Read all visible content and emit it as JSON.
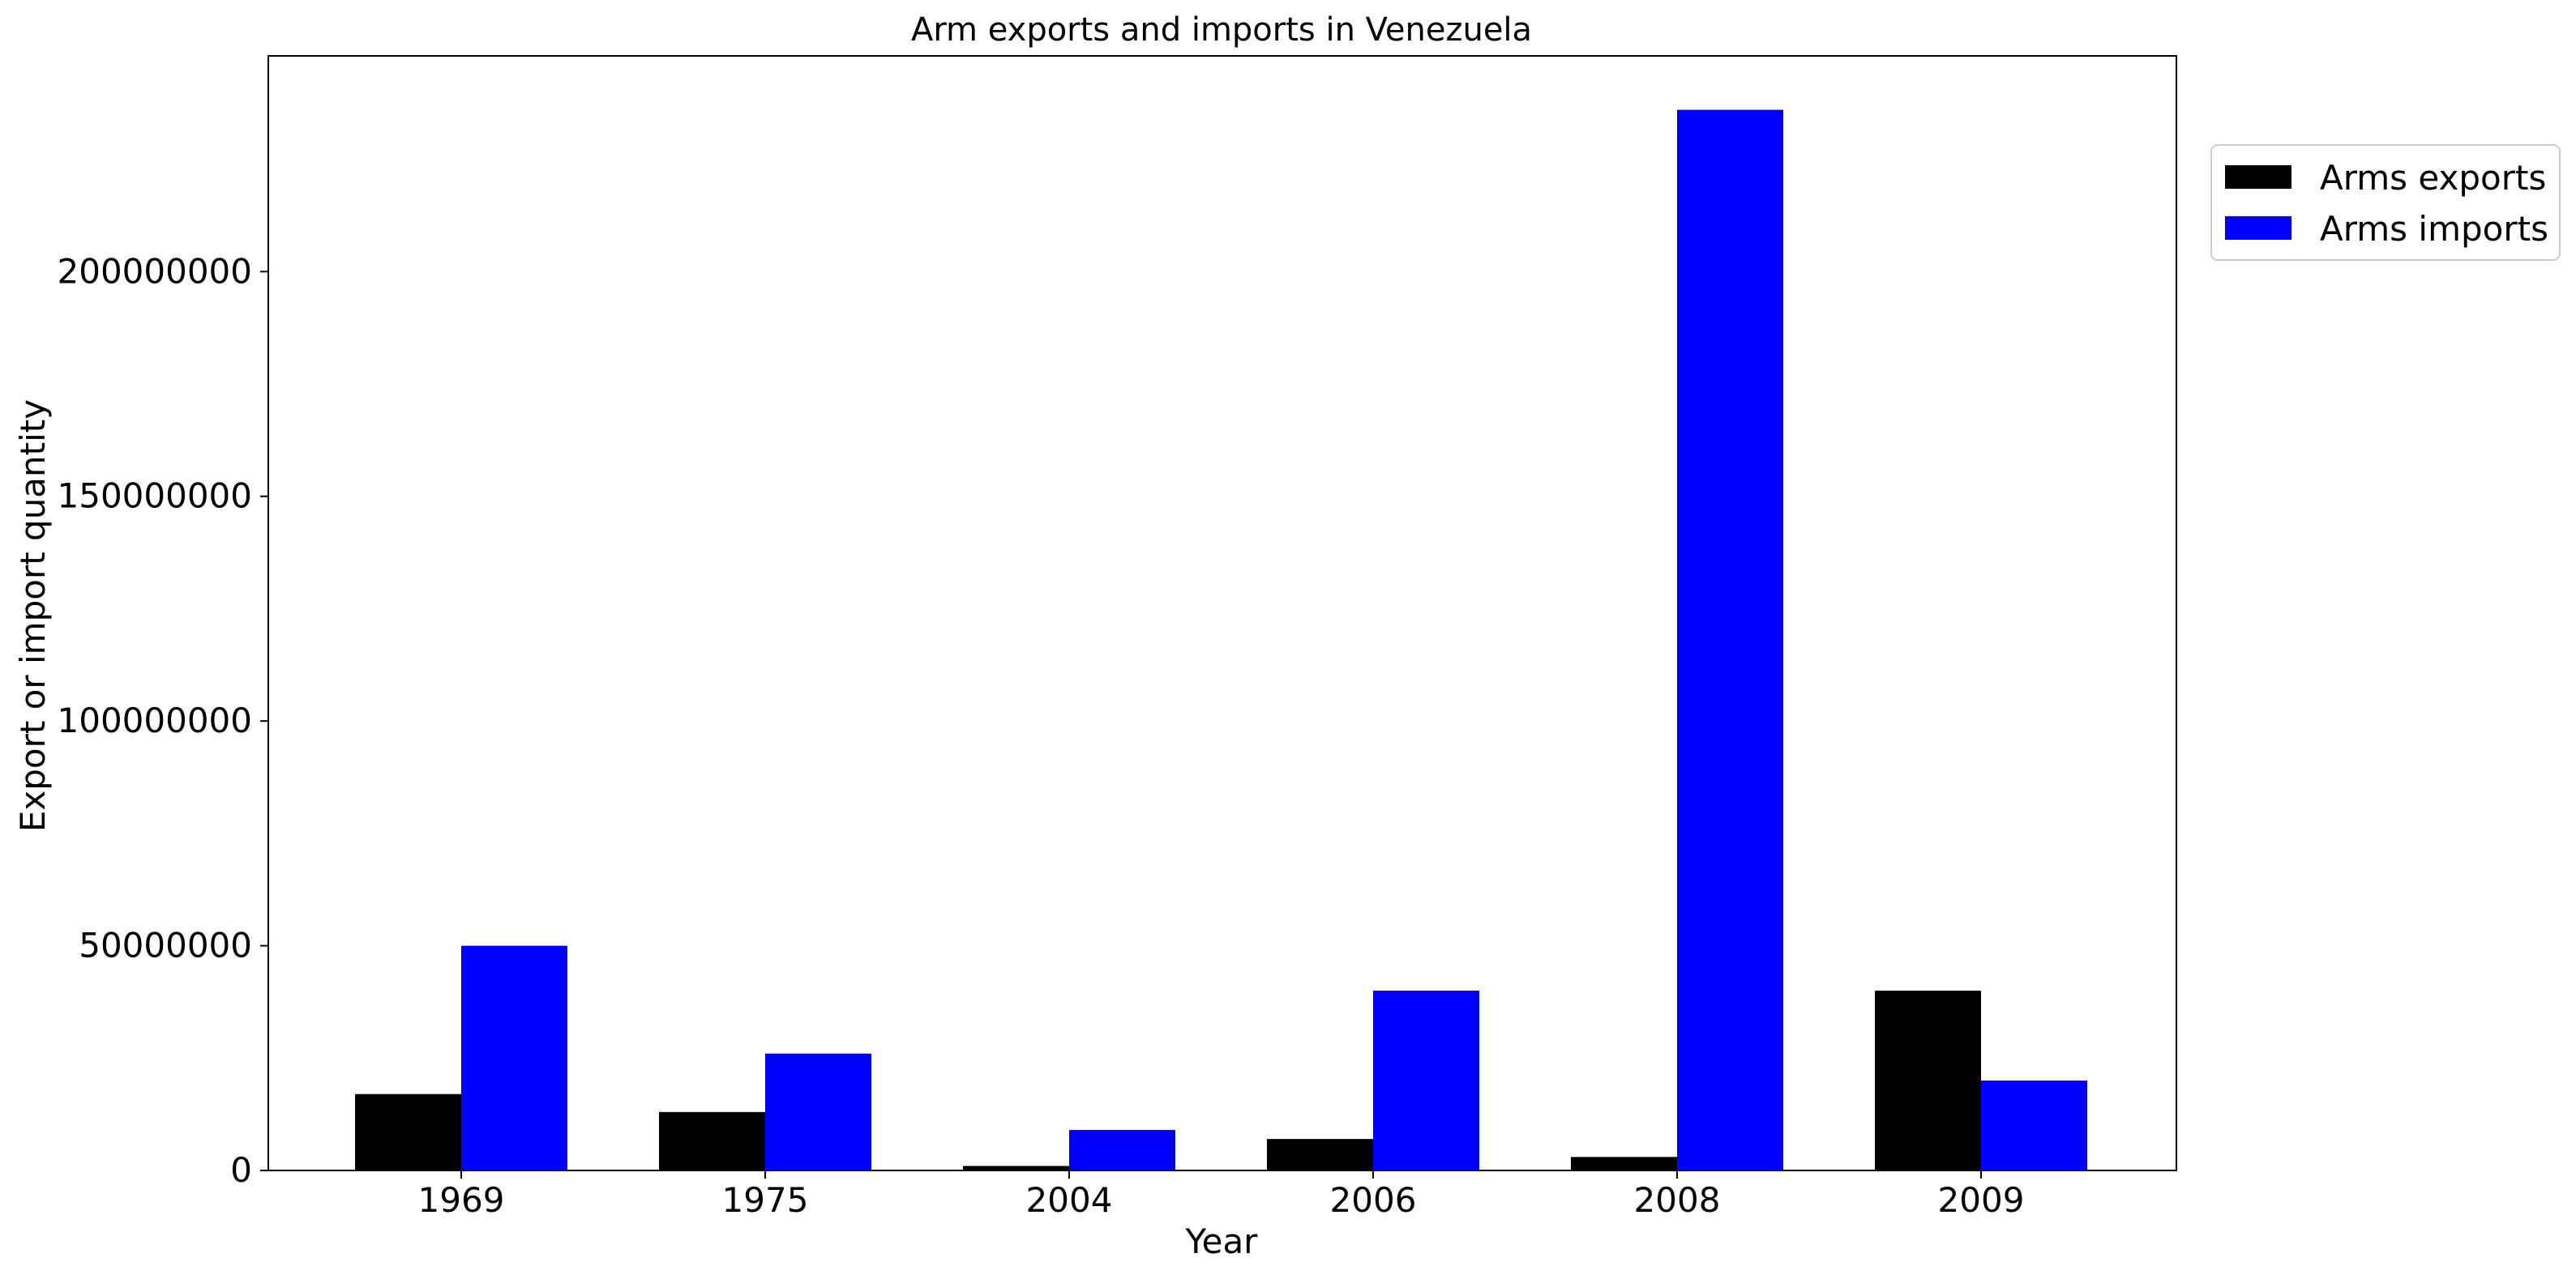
{
  "chart_data": {
    "type": "bar",
    "title": "Arm exports and imports in Venezuela",
    "xlabel": "Year",
    "ylabel": "Export or import quantity",
    "categories": [
      "1969",
      "1975",
      "2004",
      "2006",
      "2008",
      "2009"
    ],
    "series": [
      {
        "name": "Arms exports",
        "color": "#000000",
        "values": [
          17000000,
          13000000,
          1000000,
          7000000,
          3000000,
          40000000
        ]
      },
      {
        "name": "Arms imports",
        "color": "#0000ff",
        "values": [
          50000000,
          26000000,
          9000000,
          40000000,
          236000000,
          20000000
        ]
      }
    ],
    "ylim": [
      0,
      248000000
    ],
    "yticks": [
      0,
      50000000,
      100000000,
      150000000,
      200000000
    ],
    "ytick_labels": [
      "0",
      "50000000",
      "100000000",
      "150000000",
      "200000000"
    ],
    "grid": false,
    "legend_position": "top-right outside plot"
  }
}
